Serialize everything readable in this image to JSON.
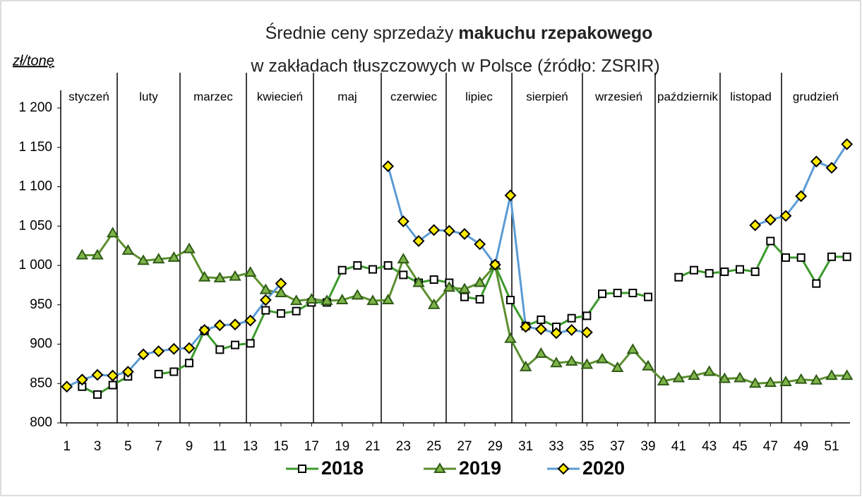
{
  "chart_data": {
    "type": "line",
    "title": {
      "line1": [
        "Średnie ceny  sprzedaży",
        "makuchu rzepakowego"
      ],
      "line2": "w zakładach tłuszczowych w Polsce  (źródło: ZSRIR)"
    },
    "y_label": "zł/tonę",
    "months": [
      "styczeń",
      "luty",
      "marzec",
      "kwiecień",
      "maj",
      "czerwiec",
      "lipiec",
      "sierpień",
      "wrzesień",
      "październik",
      "listopad",
      "grudzień"
    ],
    "x": [
      1,
      2,
      3,
      4,
      5,
      6,
      7,
      8,
      9,
      10,
      11,
      12,
      13,
      14,
      15,
      16,
      17,
      18,
      19,
      20,
      21,
      22,
      23,
      24,
      25,
      26,
      27,
      28,
      29,
      30,
      31,
      32,
      33,
      34,
      35,
      36,
      37,
      38,
      39,
      40,
      41,
      42,
      43,
      44,
      45,
      46,
      47,
      48,
      49,
      50,
      51,
      52
    ],
    "xlim": [
      0.6,
      52.2
    ],
    "xticks": [
      1,
      3,
      5,
      7,
      9,
      11,
      13,
      15,
      17,
      19,
      21,
      23,
      25,
      27,
      29,
      31,
      33,
      35,
      37,
      39,
      41,
      43,
      45,
      47,
      49,
      51
    ],
    "ylim": [
      800,
      1200
    ],
    "yticks": [
      800,
      850,
      900,
      950,
      {
        "value": 1000,
        "label": "1 000"
      },
      {
        "value": 1050,
        "label": "1 050"
      },
      {
        "value": 1100,
        "label": "1 100"
      },
      {
        "value": 1150,
        "label": "1 150"
      },
      {
        "value": 1200,
        "label": "1 200"
      }
    ],
    "series": [
      {
        "name": "2018",
        "color": "#3c9a2c",
        "marker": "square",
        "marker_fill": "#ffffff",
        "values": [
          null,
          846,
          836,
          848,
          859,
          null,
          862,
          865,
          876,
          917,
          893,
          899,
          901,
          943,
          939,
          942,
          953,
          953,
          994,
          1000,
          995,
          1000,
          988,
          978,
          982,
          978,
          960,
          957,
          1000,
          956,
          923,
          931,
          922,
          933,
          936,
          964,
          965,
          965,
          960,
          null,
          985,
          994,
          990,
          992,
          995,
          992,
          1031,
          1010,
          1010,
          977,
          1011,
          1011
        ]
      },
      {
        "name": "2019",
        "color": "#5b8f2f",
        "marker": "triangle",
        "marker_fill": "#7fb548",
        "values": [
          null,
          1013,
          1013,
          1041,
          1019,
          1006,
          1008,
          1010,
          1021,
          985,
          984,
          986,
          991,
          969,
          965,
          955,
          957,
          955,
          956,
          962,
          955,
          956,
          1008,
          978,
          950,
          972,
          970,
          978,
          1000,
          907,
          871,
          888,
          876,
          878,
          874,
          881,
          870,
          893,
          872,
          853,
          857,
          860,
          865,
          856,
          857,
          850,
          851,
          852,
          855,
          854,
          860,
          860
        ]
      },
      {
        "name": "2020",
        "color": "#5b9bd5",
        "marker": "diamond",
        "marker_fill": "#ffeb00",
        "values": [
          846,
          855,
          861,
          860,
          865,
          887,
          891,
          894,
          895,
          918,
          924,
          925,
          930,
          956,
          977,
          null,
          null,
          null,
          null,
          null,
          null,
          1126,
          1056,
          1031,
          1045,
          1044,
          1040,
          1027,
          1001,
          1089,
          922,
          919,
          914,
          918,
          915,
          null,
          null,
          null,
          null,
          null,
          null,
          null,
          null,
          null,
          null,
          1051,
          1058,
          1063,
          1088,
          1132,
          1124,
          1154
        ]
      }
    ]
  }
}
